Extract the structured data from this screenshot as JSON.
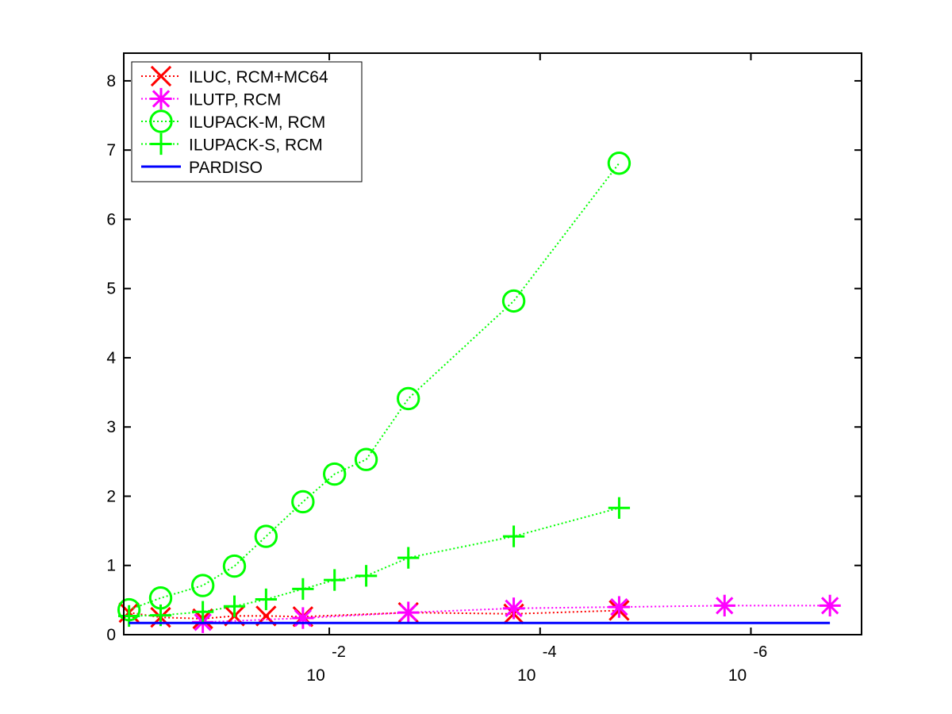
{
  "chart_data": {
    "type": "line",
    "x_scale": "log-decreasing",
    "xlim": [
      -0.05,
      -7.05
    ],
    "ylim": [
      0,
      8.4
    ],
    "x_ticks": [
      {
        "value": -2,
        "base": "10",
        "exponent": "-2"
      },
      {
        "value": -4,
        "base": "10",
        "exponent": "-4"
      },
      {
        "value": -6,
        "base": "10",
        "exponent": "-6"
      }
    ],
    "y_ticks": [
      {
        "value": 0,
        "label": "0"
      },
      {
        "value": 1,
        "label": "1"
      },
      {
        "value": 2,
        "label": "2"
      },
      {
        "value": 3,
        "label": "3"
      },
      {
        "value": 4,
        "label": "4"
      },
      {
        "value": 5,
        "label": "5"
      },
      {
        "value": 6,
        "label": "6"
      },
      {
        "value": 7,
        "label": "7"
      },
      {
        "value": 8,
        "label": "8"
      }
    ],
    "grid": false,
    "legend_position": "top-left",
    "series": [
      {
        "name": "ILUC, RCM+MC64",
        "color": "#ff0000",
        "marker": "x",
        "line": "dotted",
        "x": [
          -0.1,
          -0.4,
          -0.8,
          -1.1,
          -1.4,
          -1.75,
          -2.75,
          -3.75,
          -4.75
        ],
        "y": [
          0.32,
          0.25,
          0.23,
          0.27,
          0.27,
          0.26,
          0.32,
          0.3,
          0.35
        ]
      },
      {
        "name": "ILUTP, RCM",
        "color": "#ff00ff",
        "marker": "asterisk",
        "line": "dotted",
        "x": [
          -0.8,
          -1.75,
          -2.75,
          -3.75,
          -4.75,
          -5.75,
          -6.75
        ],
        "y": [
          0.18,
          0.24,
          0.32,
          0.38,
          0.4,
          0.42,
          0.42
        ]
      },
      {
        "name": "ILUPACK-M, RCM",
        "color": "#00ff00",
        "marker": "circle",
        "line": "dotted",
        "x": [
          -0.1,
          -0.4,
          -0.8,
          -1.1,
          -1.4,
          -1.75,
          -2.05,
          -2.35,
          -2.75,
          -3.75,
          -4.75
        ],
        "y": [
          0.36,
          0.53,
          0.71,
          0.99,
          1.42,
          1.92,
          2.32,
          2.53,
          3.41,
          4.82,
          6.81
        ]
      },
      {
        "name": "ILUPACK-S, RCM",
        "color": "#00ff00",
        "marker": "plus",
        "line": "dotted",
        "x": [
          -0.1,
          -0.4,
          -0.8,
          -1.1,
          -1.4,
          -1.75,
          -2.05,
          -2.35,
          -2.75,
          -3.75,
          -4.75
        ],
        "y": [
          0.27,
          0.28,
          0.33,
          0.41,
          0.51,
          0.66,
          0.79,
          0.85,
          1.11,
          1.42,
          1.83
        ]
      },
      {
        "name": "PARDISO",
        "color": "#0000ff",
        "marker": "none",
        "line": "solid",
        "x": [
          -0.1,
          -6.75
        ],
        "y": [
          0.17,
          0.17
        ]
      }
    ]
  }
}
